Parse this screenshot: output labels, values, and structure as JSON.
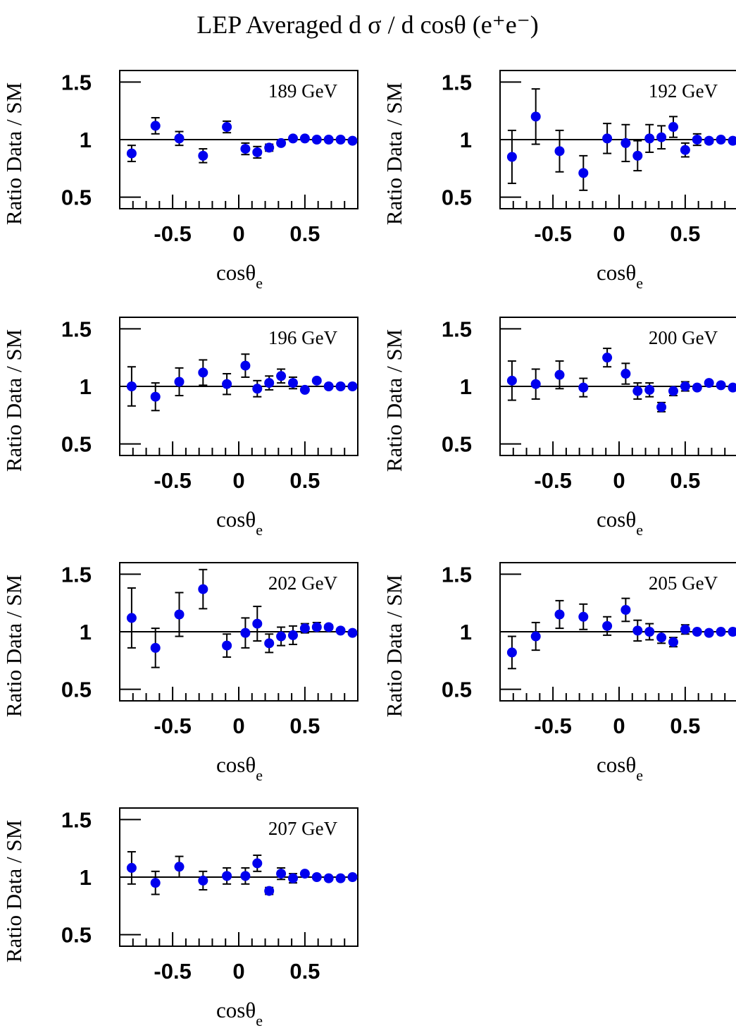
{
  "title": "LEP Averaged  d σ / d cosθ (e⁺e⁻)",
  "chart_data": [
    {
      "type": "scatter",
      "label": "189 GeV",
      "xlabel": "cosθe",
      "ylabel": "Ratio Data / SM",
      "xlim": [
        -0.9,
        0.9
      ],
      "ylim": [
        0.4,
        1.6
      ],
      "yticks": [
        "0.5",
        "1",
        "1.5"
      ],
      "xticks": [
        "-0.5",
        "0",
        "0.5"
      ],
      "reference_line": 1,
      "points": [
        {
          "x": -0.81,
          "y": 0.88,
          "err": 0.07
        },
        {
          "x": -0.63,
          "y": 1.12,
          "err": 0.07
        },
        {
          "x": -0.45,
          "y": 1.01,
          "err": 0.06
        },
        {
          "x": -0.27,
          "y": 0.86,
          "err": 0.06
        },
        {
          "x": -0.09,
          "y": 1.11,
          "err": 0.05
        },
        {
          "x": 0.05,
          "y": 0.92,
          "err": 0.05
        },
        {
          "x": 0.14,
          "y": 0.89,
          "err": 0.05
        },
        {
          "x": 0.23,
          "y": 0.93,
          "err": 0.03
        },
        {
          "x": 0.32,
          "y": 0.97,
          "err": 0.02
        },
        {
          "x": 0.41,
          "y": 1.01,
          "err": 0.01
        },
        {
          "x": 0.5,
          "y": 1.01,
          "err": 0.01
        },
        {
          "x": 0.59,
          "y": 1.0,
          "err": 0.01
        },
        {
          "x": 0.68,
          "y": 1.0,
          "err": 0.01
        },
        {
          "x": 0.77,
          "y": 1.0,
          "err": 0.01
        },
        {
          "x": 0.86,
          "y": 0.99,
          "err": 0.01
        }
      ]
    },
    {
      "type": "scatter",
      "label": "192 GeV",
      "xlabel": "cosθe",
      "ylabel": "Ratio Data / SM",
      "xlim": [
        -0.9,
        0.9
      ],
      "ylim": [
        0.4,
        1.6
      ],
      "yticks": [
        "0.5",
        "1",
        "1.5"
      ],
      "xticks": [
        "-0.5",
        "0",
        "0.5"
      ],
      "reference_line": 1,
      "points": [
        {
          "x": -0.81,
          "y": 0.85,
          "err": 0.23
        },
        {
          "x": -0.63,
          "y": 1.2,
          "err": 0.24
        },
        {
          "x": -0.45,
          "y": 0.9,
          "err": 0.18
        },
        {
          "x": -0.27,
          "y": 0.71,
          "err": 0.15
        },
        {
          "x": -0.09,
          "y": 1.01,
          "err": 0.13
        },
        {
          "x": 0.05,
          "y": 0.97,
          "err": 0.16
        },
        {
          "x": 0.14,
          "y": 0.86,
          "err": 0.13
        },
        {
          "x": 0.23,
          "y": 1.01,
          "err": 0.12
        },
        {
          "x": 0.32,
          "y": 1.02,
          "err": 0.1
        },
        {
          "x": 0.41,
          "y": 1.11,
          "err": 0.09
        },
        {
          "x": 0.5,
          "y": 0.91,
          "err": 0.06
        },
        {
          "x": 0.59,
          "y": 1.0,
          "err": 0.05
        },
        {
          "x": 0.68,
          "y": 0.99,
          "err": 0.02
        },
        {
          "x": 0.77,
          "y": 1.0,
          "err": 0.01
        },
        {
          "x": 0.86,
          "y": 0.99,
          "err": 0.01
        }
      ]
    },
    {
      "type": "scatter",
      "label": "196 GeV",
      "xlabel": "cosθe",
      "ylabel": "Ratio Data / SM",
      "xlim": [
        -0.9,
        0.9
      ],
      "ylim": [
        0.4,
        1.6
      ],
      "yticks": [
        "0.5",
        "1",
        "1.5"
      ],
      "xticks": [
        "-0.5",
        "0",
        "0.5"
      ],
      "reference_line": 1,
      "points": [
        {
          "x": -0.81,
          "y": 1.0,
          "err": 0.17
        },
        {
          "x": -0.63,
          "y": 0.91,
          "err": 0.12
        },
        {
          "x": -0.45,
          "y": 1.04,
          "err": 0.12
        },
        {
          "x": -0.27,
          "y": 1.12,
          "err": 0.11
        },
        {
          "x": -0.09,
          "y": 1.02,
          "err": 0.09
        },
        {
          "x": 0.05,
          "y": 1.18,
          "err": 0.1
        },
        {
          "x": 0.14,
          "y": 0.98,
          "err": 0.07
        },
        {
          "x": 0.23,
          "y": 1.03,
          "err": 0.06
        },
        {
          "x": 0.32,
          "y": 1.09,
          "err": 0.06
        },
        {
          "x": 0.41,
          "y": 1.03,
          "err": 0.05
        },
        {
          "x": 0.5,
          "y": 0.97,
          "err": 0.01
        },
        {
          "x": 0.59,
          "y": 1.05,
          "err": 0.01
        },
        {
          "x": 0.68,
          "y": 1.0,
          "err": 0.01
        },
        {
          "x": 0.77,
          "y": 1.0,
          "err": 0.01
        },
        {
          "x": 0.86,
          "y": 1.0,
          "err": 0.01
        }
      ]
    },
    {
      "type": "scatter",
      "label": "200 GeV",
      "xlabel": "cosθe",
      "ylabel": "Ratio Data / SM",
      "xlim": [
        -0.9,
        0.9
      ],
      "ylim": [
        0.4,
        1.6
      ],
      "yticks": [
        "0.5",
        "1",
        "1.5"
      ],
      "xticks": [
        "-0.5",
        "0",
        "0.5"
      ],
      "reference_line": 1,
      "points": [
        {
          "x": -0.81,
          "y": 1.05,
          "err": 0.17
        },
        {
          "x": -0.63,
          "y": 1.02,
          "err": 0.13
        },
        {
          "x": -0.45,
          "y": 1.1,
          "err": 0.12
        },
        {
          "x": -0.27,
          "y": 0.99,
          "err": 0.08
        },
        {
          "x": -0.09,
          "y": 1.25,
          "err": 0.08
        },
        {
          "x": 0.05,
          "y": 1.11,
          "err": 0.09
        },
        {
          "x": 0.14,
          "y": 0.96,
          "err": 0.07
        },
        {
          "x": 0.23,
          "y": 0.97,
          "err": 0.06
        },
        {
          "x": 0.32,
          "y": 0.82,
          "err": 0.04
        },
        {
          "x": 0.41,
          "y": 0.96,
          "err": 0.04
        },
        {
          "x": 0.5,
          "y": 1.0,
          "err": 0.04
        },
        {
          "x": 0.59,
          "y": 0.99,
          "err": 0.01
        },
        {
          "x": 0.68,
          "y": 1.03,
          "err": 0.01
        },
        {
          "x": 0.77,
          "y": 1.01,
          "err": 0.01
        },
        {
          "x": 0.86,
          "y": 0.99,
          "err": 0.01
        }
      ]
    },
    {
      "type": "scatter",
      "label": "202 GeV",
      "xlabel": "cosθe",
      "ylabel": "Ratio Data / SM",
      "xlim": [
        -0.9,
        0.9
      ],
      "ylim": [
        0.4,
        1.6
      ],
      "yticks": [
        "0.5",
        "1",
        "1.5"
      ],
      "xticks": [
        "-0.5",
        "0",
        "0.5"
      ],
      "reference_line": 1,
      "points": [
        {
          "x": -0.81,
          "y": 1.12,
          "err": 0.26
        },
        {
          "x": -0.63,
          "y": 0.86,
          "err": 0.17
        },
        {
          "x": -0.45,
          "y": 1.15,
          "err": 0.19
        },
        {
          "x": -0.27,
          "y": 1.37,
          "err": 0.17
        },
        {
          "x": -0.09,
          "y": 0.88,
          "err": 0.1
        },
        {
          "x": 0.05,
          "y": 0.99,
          "err": 0.13
        },
        {
          "x": 0.14,
          "y": 1.07,
          "err": 0.15
        },
        {
          "x": 0.23,
          "y": 0.9,
          "err": 0.08
        },
        {
          "x": 0.32,
          "y": 0.96,
          "err": 0.08
        },
        {
          "x": 0.41,
          "y": 0.97,
          "err": 0.08
        },
        {
          "x": 0.5,
          "y": 1.03,
          "err": 0.04
        },
        {
          "x": 0.59,
          "y": 1.04,
          "err": 0.04
        },
        {
          "x": 0.68,
          "y": 1.04,
          "err": 0.02
        },
        {
          "x": 0.77,
          "y": 1.01,
          "err": 0.01
        },
        {
          "x": 0.86,
          "y": 0.99,
          "err": 0.01
        }
      ]
    },
    {
      "type": "scatter",
      "label": "205 GeV",
      "xlabel": "cosθe",
      "ylabel": "Ratio Data / SM",
      "xlim": [
        -0.9,
        0.9
      ],
      "ylim": [
        0.4,
        1.6
      ],
      "yticks": [
        "0.5",
        "1",
        "1.5"
      ],
      "xticks": [
        "-0.5",
        "0",
        "0.5"
      ],
      "reference_line": 1,
      "points": [
        {
          "x": -0.81,
          "y": 0.82,
          "err": 0.14
        },
        {
          "x": -0.63,
          "y": 0.96,
          "err": 0.12
        },
        {
          "x": -0.45,
          "y": 1.15,
          "err": 0.12
        },
        {
          "x": -0.27,
          "y": 1.13,
          "err": 0.11
        },
        {
          "x": -0.09,
          "y": 1.05,
          "err": 0.08
        },
        {
          "x": 0.05,
          "y": 1.19,
          "err": 0.1
        },
        {
          "x": 0.14,
          "y": 1.01,
          "err": 0.09
        },
        {
          "x": 0.23,
          "y": 1.0,
          "err": 0.07
        },
        {
          "x": 0.32,
          "y": 0.95,
          "err": 0.05
        },
        {
          "x": 0.41,
          "y": 0.91,
          "err": 0.04
        },
        {
          "x": 0.5,
          "y": 1.02,
          "err": 0.04
        },
        {
          "x": 0.59,
          "y": 1.0,
          "err": 0.01
        },
        {
          "x": 0.68,
          "y": 0.99,
          "err": 0.01
        },
        {
          "x": 0.77,
          "y": 1.0,
          "err": 0.01
        },
        {
          "x": 0.86,
          "y": 1.0,
          "err": 0.01
        }
      ]
    },
    {
      "type": "scatter",
      "label": "207 GeV",
      "xlabel": "cosθe",
      "ylabel": "Ratio Data / SM",
      "xlim": [
        -0.9,
        0.9
      ],
      "ylim": [
        0.4,
        1.6
      ],
      "yticks": [
        "0.5",
        "1",
        "1.5"
      ],
      "xticks": [
        "-0.5",
        "0",
        "0.5"
      ],
      "reference_line": 1,
      "points": [
        {
          "x": -0.81,
          "y": 1.08,
          "err": 0.14
        },
        {
          "x": -0.63,
          "y": 0.95,
          "err": 0.1
        },
        {
          "x": -0.45,
          "y": 1.09,
          "err": 0.09
        },
        {
          "x": -0.27,
          "y": 0.97,
          "err": 0.08
        },
        {
          "x": -0.09,
          "y": 1.01,
          "err": 0.07
        },
        {
          "x": 0.05,
          "y": 1.01,
          "err": 0.07
        },
        {
          "x": 0.14,
          "y": 1.12,
          "err": 0.07
        },
        {
          "x": 0.23,
          "y": 0.88,
          "err": 0.03
        },
        {
          "x": 0.32,
          "y": 1.03,
          "err": 0.05
        },
        {
          "x": 0.41,
          "y": 0.99,
          "err": 0.04
        },
        {
          "x": 0.5,
          "y": 1.03,
          "err": 0.01
        },
        {
          "x": 0.59,
          "y": 1.0,
          "err": 0.01
        },
        {
          "x": 0.68,
          "y": 0.99,
          "err": 0.01
        },
        {
          "x": 0.77,
          "y": 0.99,
          "err": 0.01
        },
        {
          "x": 0.86,
          "y": 1.0,
          "err": 0.01
        }
      ]
    }
  ],
  "colors": {
    "marker": "#0000ee",
    "axis": "#000000"
  }
}
